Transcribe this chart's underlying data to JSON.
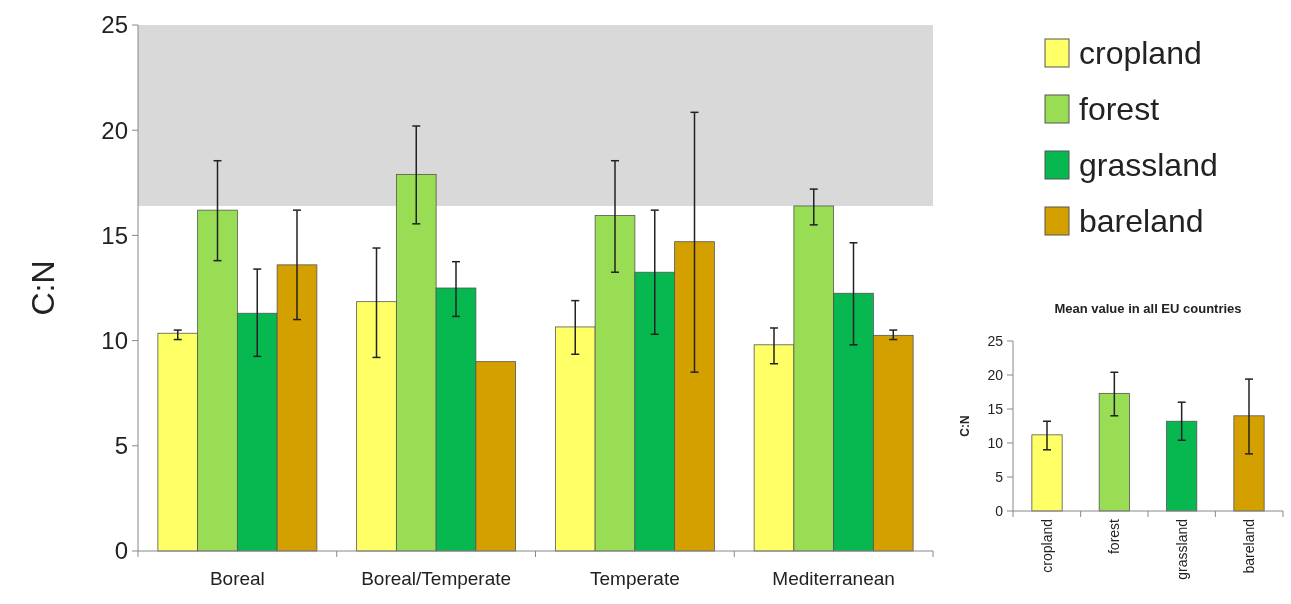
{
  "chart_data": [
    {
      "type": "bar",
      "ylabel": "C:N",
      "categories": [
        "Boreal",
        "Boreal/Temperate",
        "Temperate",
        "Mediterranean"
      ],
      "ylim": [
        0,
        25
      ],
      "yticks": [
        0,
        5,
        10,
        15,
        20,
        25
      ],
      "legend": "top right",
      "bands": [
        {
          "axis": "y",
          "from": 16.4,
          "to": 25,
          "color": "#d9d9d9"
        }
      ],
      "series": [
        {
          "name": "cropland",
          "color": "#ffff66",
          "values": [
            10.35,
            11.85,
            10.65,
            9.8
          ],
          "errors": [
            [
              10.05,
              10.5
            ],
            [
              9.2,
              14.4
            ],
            [
              9.35,
              11.9
            ],
            [
              8.9,
              10.6
            ]
          ]
        },
        {
          "name": "forest",
          "color": "#99dd55",
          "values": [
            16.2,
            17.9,
            15.95,
            16.4
          ],
          "errors": [
            [
              13.8,
              18.55
            ],
            [
              15.55,
              20.2
            ],
            [
              13.25,
              18.55
            ],
            [
              15.5,
              17.2
            ]
          ]
        },
        {
          "name": "grassland",
          "color": "#07b850",
          "values": [
            11.3,
            12.5,
            13.25,
            12.25
          ],
          "errors": [
            [
              9.25,
              13.4
            ],
            [
              11.15,
              13.75
            ],
            [
              10.3,
              16.2
            ],
            [
              9.8,
              14.65
            ]
          ]
        },
        {
          "name": "bareland",
          "color": "#d4a000",
          "values": [
            13.6,
            9.0,
            14.7,
            10.25
          ],
          "errors": [
            [
              11.0,
              16.2
            ],
            null,
            [
              8.5,
              20.85
            ],
            [
              10.05,
              10.5
            ]
          ]
        }
      ]
    },
    {
      "type": "bar",
      "title": "Mean value in all EU countries",
      "ylabel": "C:N",
      "categories": [
        "cropland",
        "forest",
        "grassland",
        "bareland"
      ],
      "ylim": [
        0,
        25
      ],
      "yticks": [
        0,
        5,
        10,
        15,
        20,
        25
      ],
      "values": [
        11.2,
        17.3,
        13.2,
        14.0
      ],
      "colors": [
        "#ffff66",
        "#99dd55",
        "#07b850",
        "#d4a000"
      ],
      "errors": [
        [
          9.0,
          13.2
        ],
        [
          14.0,
          20.4
        ],
        [
          10.4,
          16.0
        ],
        [
          8.4,
          19.4
        ]
      ]
    }
  ]
}
